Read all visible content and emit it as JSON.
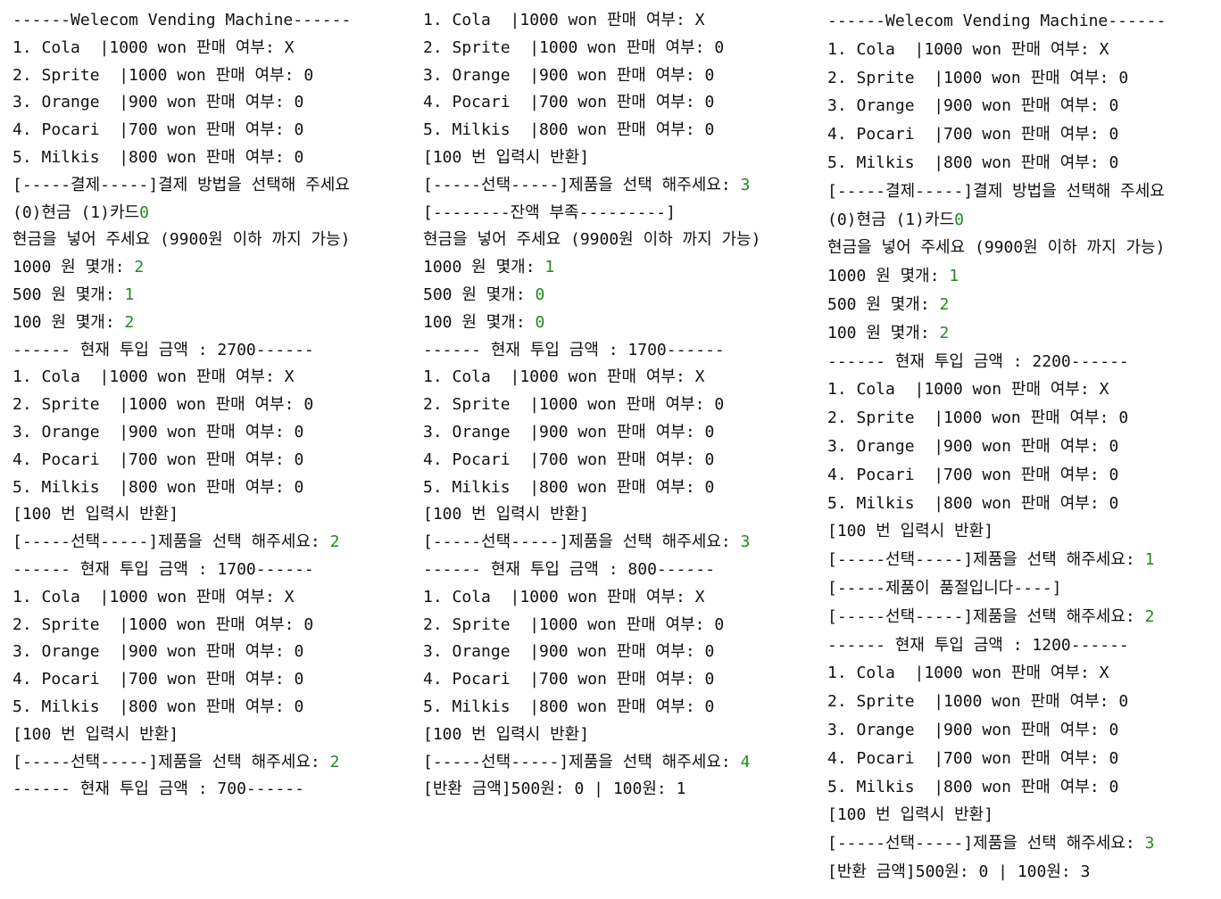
{
  "colors": {
    "background": "#ffffff",
    "text": "#111111",
    "user_input": "#1f8a1f"
  },
  "panels": [
    {
      "lines": [
        [
          {
            "t": "------Welecom Vending Machine------"
          }
        ],
        [
          {
            "t": "1. Cola  |1000 won 판매 여부: X"
          }
        ],
        [
          {
            "t": "2. Sprite  |1000 won 판매 여부: 0"
          }
        ],
        [
          {
            "t": "3. Orange  |900 won 판매 여부: 0"
          }
        ],
        [
          {
            "t": "4. Pocari  |700 won 판매 여부: 0"
          }
        ],
        [
          {
            "t": "5. Milkis  |800 won 판매 여부: 0"
          }
        ],
        [
          {
            "t": "[-----결제-----]결제 방법을 선택해 주세요"
          }
        ],
        [
          {
            "t": "(0)현금 (1)카드"
          },
          {
            "t": "0",
            "input": true
          }
        ],
        [
          {
            "t": "현금을 넣어 주세요 (9900원 이하 까지 가능)"
          }
        ],
        [
          {
            "t": "1000 원 몇개: "
          },
          {
            "t": "2",
            "input": true
          }
        ],
        [
          {
            "t": "500 원 몇개: "
          },
          {
            "t": "1",
            "input": true
          }
        ],
        [
          {
            "t": "100 원 몇개: "
          },
          {
            "t": "2",
            "input": true
          }
        ],
        [
          {
            "t": "------ 현재 투입 금액 : 2700------"
          }
        ],
        [
          {
            "t": "1. Cola  |1000 won 판매 여부: X"
          }
        ],
        [
          {
            "t": "2. Sprite  |1000 won 판매 여부: 0"
          }
        ],
        [
          {
            "t": "3. Orange  |900 won 판매 여부: 0"
          }
        ],
        [
          {
            "t": "4. Pocari  |700 won 판매 여부: 0"
          }
        ],
        [
          {
            "t": "5. Milkis  |800 won 판매 여부: 0"
          }
        ],
        [
          {
            "t": "[100 번 입력시 반환]"
          }
        ],
        [
          {
            "t": "[-----선택-----]제품을 선택 해주세요: "
          },
          {
            "t": "2",
            "input": true
          }
        ],
        [
          {
            "t": "------ 현재 투입 금액 : 1700------"
          }
        ],
        [
          {
            "t": "1. Cola  |1000 won 판매 여부: X"
          }
        ],
        [
          {
            "t": "2. Sprite  |1000 won 판매 여부: 0"
          }
        ],
        [
          {
            "t": "3. Orange  |900 won 판매 여부: 0"
          }
        ],
        [
          {
            "t": "4. Pocari  |700 won 판매 여부: 0"
          }
        ],
        [
          {
            "t": "5. Milkis  |800 won 판매 여부: 0"
          }
        ],
        [
          {
            "t": "[100 번 입력시 반환]"
          }
        ],
        [
          {
            "t": "[-----선택-----]제품을 선택 해주세요: "
          },
          {
            "t": "2",
            "input": true
          }
        ],
        [
          {
            "t": "------ 현재 투입 금액 : 700------"
          }
        ]
      ]
    },
    {
      "lines": [
        [
          {
            "t": "1. Cola  |1000 won 판매 여부: X"
          }
        ],
        [
          {
            "t": "2. Sprite  |1000 won 판매 여부: 0"
          }
        ],
        [
          {
            "t": "3. Orange  |900 won 판매 여부: 0"
          }
        ],
        [
          {
            "t": "4. Pocari  |700 won 판매 여부: 0"
          }
        ],
        [
          {
            "t": "5. Milkis  |800 won 판매 여부: 0"
          }
        ],
        [
          {
            "t": "[100 번 입력시 반환]"
          }
        ],
        [
          {
            "t": "[-----선택-----]제품을 선택 해주세요: "
          },
          {
            "t": "3",
            "input": true
          }
        ],
        [
          {
            "t": "[--------잔액 부족---------]"
          }
        ],
        [
          {
            "t": "현금을 넣어 주세요 (9900원 이하 까지 가능)"
          }
        ],
        [
          {
            "t": "1000 원 몇개: "
          },
          {
            "t": "1",
            "input": true
          }
        ],
        [
          {
            "t": "500 원 몇개: "
          },
          {
            "t": "0",
            "input": true
          }
        ],
        [
          {
            "t": "100 원 몇개: "
          },
          {
            "t": "0",
            "input": true
          }
        ],
        [
          {
            "t": "------ 현재 투입 금액 : 1700------"
          }
        ],
        [
          {
            "t": "1. Cola  |1000 won 판매 여부: X"
          }
        ],
        [
          {
            "t": "2. Sprite  |1000 won 판매 여부: 0"
          }
        ],
        [
          {
            "t": "3. Orange  |900 won 판매 여부: 0"
          }
        ],
        [
          {
            "t": "4. Pocari  |700 won 판매 여부: 0"
          }
        ],
        [
          {
            "t": "5. Milkis  |800 won 판매 여부: 0"
          }
        ],
        [
          {
            "t": "[100 번 입력시 반환]"
          }
        ],
        [
          {
            "t": "[-----선택-----]제품을 선택 해주세요: "
          },
          {
            "t": "3",
            "input": true
          }
        ],
        [
          {
            "t": "------ 현재 투입 금액 : 800------"
          }
        ],
        [
          {
            "t": "1. Cola  |1000 won 판매 여부: X"
          }
        ],
        [
          {
            "t": "2. Sprite  |1000 won 판매 여부: 0"
          }
        ],
        [
          {
            "t": "3. Orange  |900 won 판매 여부: 0"
          }
        ],
        [
          {
            "t": "4. Pocari  |700 won 판매 여부: 0"
          }
        ],
        [
          {
            "t": "5. Milkis  |800 won 판매 여부: 0"
          }
        ],
        [
          {
            "t": "[100 번 입력시 반환]"
          }
        ],
        [
          {
            "t": "[-----선택-----]제품을 선택 해주세요: "
          },
          {
            "t": "4",
            "input": true
          }
        ],
        [
          {
            "t": "[반환 금액]500원: 0 | 100원: 1"
          }
        ]
      ]
    },
    {
      "lines": [
        [
          {
            "t": "------Welecom Vending Machine------"
          }
        ],
        [
          {
            "t": "1. Cola  |1000 won 판매 여부: X"
          }
        ],
        [
          {
            "t": "2. Sprite  |1000 won 판매 여부: 0"
          }
        ],
        [
          {
            "t": "3. Orange  |900 won 판매 여부: 0"
          }
        ],
        [
          {
            "t": "4. Pocari  |700 won 판매 여부: 0"
          }
        ],
        [
          {
            "t": "5. Milkis  |800 won 판매 여부: 0"
          }
        ],
        [
          {
            "t": "[-----결제-----]결제 방법을 선택해 주세요"
          }
        ],
        [
          {
            "t": "(0)현금 (1)카드"
          },
          {
            "t": "0",
            "input": true
          }
        ],
        [
          {
            "t": "현금을 넣어 주세요 (9900원 이하 까지 가능)"
          }
        ],
        [
          {
            "t": "1000 원 몇개: "
          },
          {
            "t": "1",
            "input": true
          }
        ],
        [
          {
            "t": "500 원 몇개: "
          },
          {
            "t": "2",
            "input": true
          }
        ],
        [
          {
            "t": "100 원 몇개: "
          },
          {
            "t": "2",
            "input": true
          }
        ],
        [
          {
            "t": "------ 현재 투입 금액 : 2200------"
          }
        ],
        [
          {
            "t": "1. Cola  |1000 won 판매 여부: X"
          }
        ],
        [
          {
            "t": "2. Sprite  |1000 won 판매 여부: 0"
          }
        ],
        [
          {
            "t": "3. Orange  |900 won 판매 여부: 0"
          }
        ],
        [
          {
            "t": "4. Pocari  |700 won 판매 여부: 0"
          }
        ],
        [
          {
            "t": "5. Milkis  |800 won 판매 여부: 0"
          }
        ],
        [
          {
            "t": "[100 번 입력시 반환]"
          }
        ],
        [
          {
            "t": "[-----선택-----]제품을 선택 해주세요: "
          },
          {
            "t": "1",
            "input": true
          }
        ],
        [
          {
            "t": "[-----제품이 품절입니다----]"
          }
        ],
        [
          {
            "t": "[-----선택-----]제품을 선택 해주세요: "
          },
          {
            "t": "2",
            "input": true
          }
        ],
        [
          {
            "t": "------ 현재 투입 금액 : 1200------"
          }
        ],
        [
          {
            "t": "1. Cola  |1000 won 판매 여부: X"
          }
        ],
        [
          {
            "t": "2. Sprite  |1000 won 판매 여부: 0"
          }
        ],
        [
          {
            "t": "3. Orange  |900 won 판매 여부: 0"
          }
        ],
        [
          {
            "t": "4. Pocari  |700 won 판매 여부: 0"
          }
        ],
        [
          {
            "t": "5. Milkis  |800 won 판매 여부: 0"
          }
        ],
        [
          {
            "t": "[100 번 입력시 반환]"
          }
        ],
        [
          {
            "t": "[-----선택-----]제품을 선택 해주세요: "
          },
          {
            "t": "3",
            "input": true
          }
        ],
        [
          {
            "t": "[반환 금액]500원: 0 | 100원: 3"
          }
        ]
      ]
    }
  ]
}
